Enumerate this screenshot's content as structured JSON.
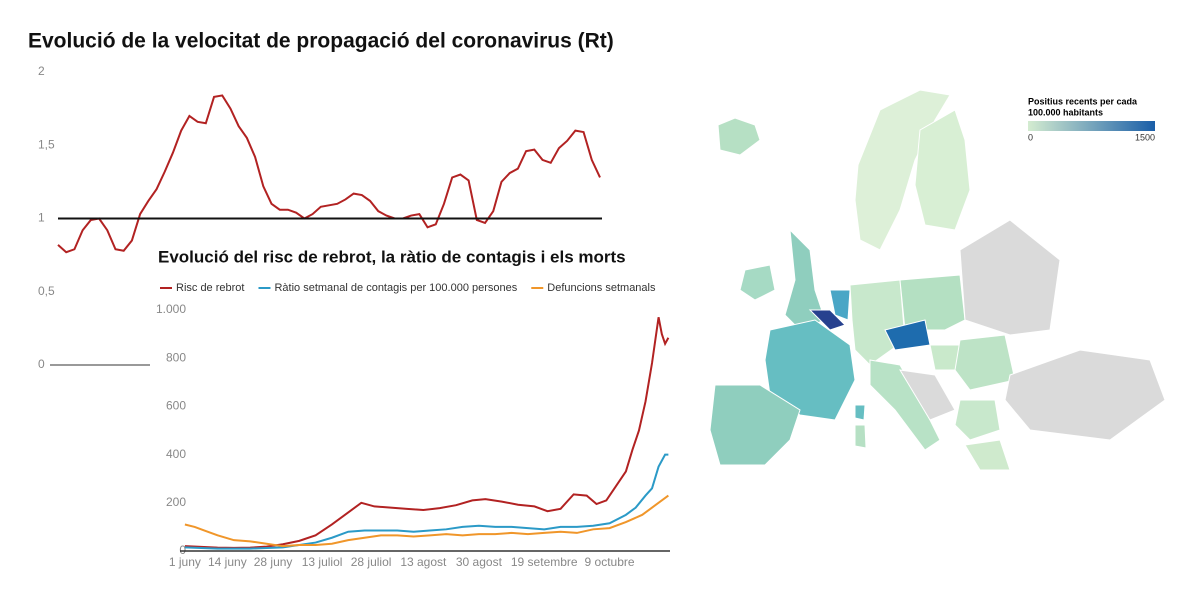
{
  "chart_data": [
    {
      "type": "line",
      "title": "Evolució de la velocitat de propagació del coronavirus (Rt)",
      "values": [
        0.82,
        0.77,
        0.79,
        0.92,
        0.99,
        1.0,
        0.92,
        0.79,
        0.78,
        0.85,
        1.03,
        1.12,
        1.2,
        1.32,
        1.45,
        1.6,
        1.7,
        1.66,
        1.65,
        1.83,
        1.84,
        1.75,
        1.63,
        1.55,
        1.42,
        1.22,
        1.1,
        1.06,
        1.06,
        1.04,
        1.0,
        1.03,
        1.08,
        1.09,
        1.1,
        1.13,
        1.17,
        1.16,
        1.12,
        1.05,
        1.02,
        1.0,
        1.0,
        1.02,
        1.03,
        0.94,
        0.96,
        1.1,
        1.28,
        1.3,
        1.26,
        0.99,
        0.97,
        1.05,
        1.25,
        1.31,
        1.34,
        1.46,
        1.47,
        1.4,
        1.38,
        1.48,
        1.53,
        1.6,
        1.59,
        1.4,
        1.28
      ],
      "color": "#b22222",
      "ylim": [
        0,
        2
      ],
      "yticks": [
        0,
        {
          "value": 0.5,
          "label": "0,5"
        },
        1,
        {
          "value": 1.5,
          "label": "1,5"
        },
        2
      ],
      "reference_line": 1
    },
    {
      "type": "line",
      "title": "Evolució del risc de rebrot, la ràtio de contagis i els morts",
      "series": [
        {
          "name": "Risc de rebrot",
          "color": "#b22222",
          "x": [
            0,
            5,
            10,
            15,
            20,
            25,
            30,
            35,
            40,
            45,
            50,
            54,
            58,
            63,
            68,
            73,
            78,
            83,
            88,
            92,
            97,
            102,
            107,
            111,
            115,
            119,
            123,
            126,
            129,
            132,
            135,
            137,
            139,
            141,
            143,
            145,
            146,
            147,
            148
          ],
          "values": [
            20,
            17,
            14,
            13,
            14,
            18,
            28,
            42,
            65,
            110,
            160,
            200,
            185,
            180,
            175,
            170,
            178,
            190,
            210,
            215,
            205,
            192,
            185,
            165,
            175,
            235,
            230,
            195,
            210,
            270,
            330,
            420,
            500,
            620,
            780,
            970,
            900,
            860,
            885
          ]
        },
        {
          "name": "Ràtio setmanal de contagis per 100.000 persones",
          "color": "#2b9ac7",
          "x": [
            0,
            10,
            20,
            30,
            40,
            45,
            50,
            55,
            60,
            65,
            70,
            75,
            80,
            85,
            90,
            95,
            100,
            105,
            110,
            115,
            120,
            125,
            130,
            135,
            138,
            141,
            143,
            145,
            147,
            148
          ],
          "values": [
            15,
            10,
            10,
            15,
            35,
            55,
            80,
            85,
            85,
            85,
            80,
            85,
            90,
            100,
            105,
            100,
            100,
            95,
            90,
            100,
            100,
            105,
            115,
            150,
            180,
            230,
            260,
            350,
            400,
            400
          ]
        },
        {
          "name": "Defuncions setmanals",
          "color": "#f0962a",
          "x": [
            0,
            3,
            6,
            10,
            15,
            20,
            25,
            30,
            35,
            40,
            45,
            50,
            55,
            60,
            65,
            70,
            75,
            80,
            85,
            90,
            95,
            100,
            105,
            110,
            115,
            120,
            125,
            130,
            135,
            140,
            144,
            148
          ],
          "values": [
            110,
            100,
            85,
            65,
            45,
            40,
            30,
            20,
            25,
            25,
            30,
            45,
            55,
            65,
            65,
            60,
            65,
            70,
            65,
            70,
            70,
            75,
            70,
            75,
            80,
            75,
            90,
            95,
            120,
            150,
            190,
            230
          ]
        }
      ],
      "xlim": [
        -1.5,
        148.5
      ],
      "xticks": [
        {
          "value": 0,
          "label": "1 juny"
        },
        {
          "value": 13,
          "label": "14 juny"
        },
        {
          "value": 27,
          "label": "28 juny"
        },
        {
          "value": 42,
          "label": "13 juliol"
        },
        {
          "value": 57,
          "label": "28 juliol"
        },
        {
          "value": 73,
          "label": "13 agost"
        },
        {
          "value": 90,
          "label": "30 agost"
        },
        {
          "value": 110,
          "label": "19 setembre"
        },
        {
          "value": 130,
          "label": "9 octubre"
        }
      ],
      "ylim": [
        0,
        1000
      ],
      "yticks": [
        0,
        200,
        400,
        600,
        800,
        {
          "value": 1000,
          "label": "1.000"
        }
      ]
    },
    {
      "type": "choropleth",
      "legend_title": [
        "Positius recents per cada",
        "100.000 habitants"
      ],
      "colorlim": [
        0,
        1500
      ],
      "colorticks": [
        0,
        1500
      ],
      "colors": [
        "#d4ecd0",
        "#1a5ea8"
      ]
    }
  ]
}
